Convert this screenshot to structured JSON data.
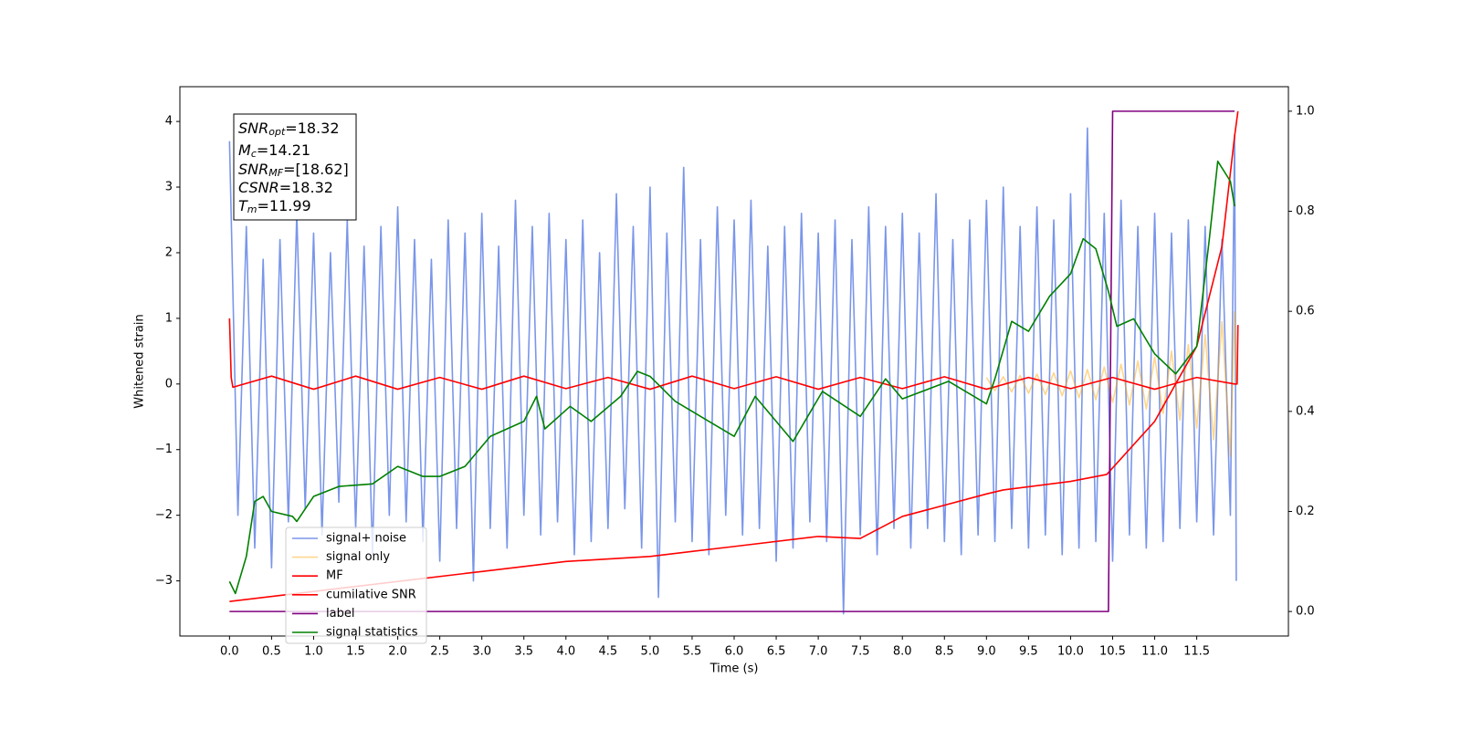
{
  "chart_data": {
    "type": "line",
    "xlabel": "Time (s)",
    "ylabel": "Whitened strain",
    "xlim": [
      -0.59,
      12.59
    ],
    "ylim": [
      -3.84,
      4.53
    ],
    "y2lim": [
      -0.049,
      1.049
    ],
    "xticks": [
      {
        "value": 0,
        "label": "0.0"
      },
      0.5,
      {
        "value": 1,
        "label": "1.0"
      },
      1.5,
      {
        "value": 2,
        "label": "2.0"
      },
      2.5,
      {
        "value": 3,
        "label": "3.0"
      },
      3.5,
      {
        "value": 4,
        "label": "4.0"
      },
      4.5,
      {
        "value": 5,
        "label": "5.0"
      },
      5.5,
      {
        "value": 6,
        "label": "6.0"
      },
      6.5,
      {
        "value": 7,
        "label": "7.0"
      },
      7.5,
      {
        "value": 8,
        "label": "8.0"
      },
      8.5,
      {
        "value": 9,
        "label": "9.0"
      },
      9.5,
      {
        "value": 10,
        "label": "10.0"
      },
      10.5,
      {
        "value": 11,
        "label": "11.0"
      },
      11.5
    ],
    "yticks": [
      {
        "value": -3,
        "label": "−3"
      },
      {
        "value": -2,
        "label": "−2"
      },
      {
        "value": -1,
        "label": "−1"
      },
      0,
      1,
      2,
      3,
      4
    ],
    "y2ticks": [
      {
        "value": 0,
        "label": "0.0"
      },
      0.2,
      0.4,
      0.6,
      0.8,
      {
        "value": 1,
        "label": "1.0"
      }
    ],
    "legend": "lower left",
    "annotations": [
      {
        "main": "SNR",
        "sub": "opt",
        "text": "=18.32"
      },
      {
        "main": "M",
        "sub": "c",
        "text": "=14.21"
      },
      {
        "main": "SNR",
        "sub": "MF",
        "text": "=[18.62]"
      },
      {
        "main": "CSNR",
        "text": "=18.32"
      },
      {
        "main": "T",
        "sub": "m",
        "text": "=11.99"
      }
    ],
    "series": [
      {
        "name": "signal+ noise",
        "color": "#4169e1",
        "opacity": 0.7,
        "x": [
          0,
          0.1,
          0.2,
          0.3,
          0.4,
          0.5,
          0.6,
          0.7,
          0.8,
          0.9,
          1,
          1.1,
          1.2,
          1.3,
          1.4,
          1.5,
          1.6,
          1.7,
          1.8,
          1.9,
          2,
          2.1,
          2.2,
          2.3,
          2.4,
          2.5,
          2.6,
          2.7,
          2.8,
          2.9,
          3,
          3.1,
          3.2,
          3.3,
          3.4,
          3.5,
          3.6,
          3.7,
          3.8,
          3.9,
          4,
          4.1,
          4.2,
          4.3,
          4.4,
          4.5,
          4.6,
          4.7,
          4.8,
          4.9,
          5,
          5.1,
          5.2,
          5.3,
          5.4,
          5.5,
          5.6,
          5.7,
          5.8,
          5.9,
          6,
          6.1,
          6.2,
          6.3,
          6.4,
          6.5,
          6.6,
          6.7,
          6.8,
          6.9,
          7,
          7.1,
          7.2,
          7.3,
          7.4,
          7.5,
          7.6,
          7.7,
          7.8,
          7.9,
          8,
          8.1,
          8.2,
          8.3,
          8.4,
          8.5,
          8.6,
          8.7,
          8.8,
          8.9,
          9,
          9.1,
          9.2,
          9.3,
          9.4,
          9.5,
          9.6,
          9.7,
          9.8,
          9.9,
          10,
          10.1,
          10.2,
          10.3,
          10.4,
          10.5,
          10.6,
          10.7,
          10.8,
          10.9,
          11,
          11.1,
          11.2,
          11.3,
          11.4,
          11.5,
          11.6,
          11.7,
          11.8,
          11.9,
          11.95,
          11.97
        ],
        "values": [
          3.7,
          -2.0,
          2.4,
          -2.5,
          1.9,
          -2.8,
          2.2,
          -2.1,
          2.6,
          -1.9,
          2.3,
          -2.3,
          2.0,
          -1.8,
          2.5,
          -2.2,
          2.1,
          -2.6,
          2.4,
          -2.0,
          2.7,
          -2.1,
          2.2,
          -2.4,
          1.9,
          -2.7,
          2.5,
          -2.2,
          2.3,
          -3.0,
          2.6,
          -2.2,
          2.1,
          -2.5,
          2.8,
          -2.0,
          2.4,
          -2.3,
          2.6,
          -2.1,
          2.2,
          -2.6,
          2.5,
          -2.4,
          2.0,
          -2.2,
          2.9,
          -1.9,
          2.4,
          -2.5,
          3.0,
          -3.25,
          2.3,
          -2.1,
          3.3,
          -2.4,
          2.2,
          -2.6,
          2.7,
          -2.0,
          2.5,
          -2.3,
          2.8,
          -2.2,
          2.1,
          -2.7,
          2.4,
          -2.5,
          2.6,
          -2.1,
          2.3,
          -2.4,
          2.5,
          -3.5,
          2.2,
          -2.3,
          2.7,
          -2.6,
          2.4,
          -2.2,
          2.6,
          -2.5,
          2.3,
          -2.2,
          2.9,
          -2.4,
          2.2,
          -2.6,
          2.5,
          -2.3,
          2.8,
          -2.4,
          3.0,
          -2.2,
          2.4,
          -2.5,
          2.7,
          -2.3,
          2.5,
          -2.6,
          2.9,
          -2.5,
          3.9,
          -2.4,
          2.6,
          -2.7,
          2.8,
          -2.3,
          2.4,
          -2.5,
          2.6,
          -2.4,
          2.3,
          -2.2,
          2.5,
          -2.1,
          2.4,
          -2.3,
          2.2,
          -2.0,
          3.8,
          -3.0
        ]
      },
      {
        "name": "signal only",
        "color": "#ffa500",
        "opacity": 0.45,
        "x": [
          9,
          9.1,
          9.2,
          9.3,
          9.4,
          9.5,
          9.6,
          9.7,
          9.8,
          9.9,
          10,
          10.1,
          10.2,
          10.3,
          10.4,
          10.5,
          10.6,
          10.7,
          10.8,
          10.9,
          11,
          11.1,
          11.2,
          11.3,
          11.4,
          11.5,
          11.6,
          11.7,
          11.8,
          11.9,
          11.95,
          11.97
        ],
        "values": [
          0.1,
          -0.1,
          0.11,
          -0.12,
          0.13,
          -0.14,
          0.15,
          -0.16,
          0.17,
          -0.18,
          0.2,
          -0.21,
          0.22,
          -0.24,
          0.26,
          -0.28,
          0.3,
          -0.32,
          0.35,
          -0.38,
          0.41,
          -0.45,
          0.5,
          -0.55,
          0.6,
          -0.67,
          0.75,
          -0.85,
          0.95,
          -1.1,
          1.1,
          0
        ]
      },
      {
        "name": "MF",
        "color": "#ff0000",
        "opacity": 1,
        "x": [
          0,
          0.02,
          0.04,
          0.5,
          1,
          1.5,
          2,
          2.5,
          3,
          3.5,
          4,
          4.5,
          5,
          5.5,
          6,
          6.5,
          7,
          7.5,
          8,
          8.5,
          9,
          9.5,
          10,
          10.5,
          11,
          11.5,
          11.95,
          11.98,
          11.99
        ],
        "values": [
          1.0,
          0.1,
          -0.05,
          0.12,
          -0.08,
          0.12,
          -0.08,
          0.1,
          -0.08,
          0.12,
          -0.07,
          0.1,
          -0.08,
          0.12,
          -0.07,
          0.11,
          -0.08,
          0.1,
          -0.07,
          0.11,
          -0.08,
          0.1,
          -0.07,
          0.1,
          -0.08,
          0.1,
          0.0,
          0.0,
          0.9
        ]
      },
      {
        "name": "cumilative SNR",
        "color": "#ff0000",
        "opacity": 1,
        "axis": "y2",
        "x": [
          0,
          1,
          2,
          3,
          4,
          5,
          6,
          7,
          7.5,
          8,
          9,
          9.2,
          10,
          10.43,
          11,
          11.5,
          11.8,
          11.95,
          11.99
        ],
        "values": [
          0.02,
          0.04,
          0.06,
          0.08,
          0.1,
          0.11,
          0.13,
          0.15,
          0.146,
          0.19,
          0.235,
          0.243,
          0.26,
          0.274,
          0.38,
          0.53,
          0.73,
          0.95,
          1.0
        ]
      },
      {
        "name": "label",
        "color": "#800080",
        "opacity": 1,
        "axis": "y2",
        "x": [
          0,
          10.45,
          10.5,
          11.95
        ],
        "values": [
          0,
          0,
          1,
          1
        ]
      },
      {
        "name": "signal statistics",
        "color": "#008000",
        "opacity": 1,
        "axis": "y2",
        "x": [
          0,
          0.07,
          0.2,
          0.3,
          0.4,
          0.5,
          0.75,
          0.8,
          1,
          1.3,
          1.7,
          2,
          2.3,
          2.5,
          2.8,
          3.1,
          3.5,
          3.65,
          3.75,
          4.05,
          4.3,
          4.65,
          4.85,
          5,
          5.3,
          5.6,
          6,
          6.25,
          6.7,
          7.05,
          7.5,
          7.8,
          8,
          8.55,
          9,
          9.1,
          9.3,
          9.5,
          9.75,
          10,
          10.15,
          10.3,
          10.45,
          10.55,
          10.75,
          11,
          11.25,
          11.5,
          11.65,
          11.75,
          11.9,
          11.95
        ],
        "values": [
          0.06,
          0.036,
          0.11,
          0.22,
          0.23,
          0.2,
          0.19,
          0.18,
          0.23,
          0.25,
          0.255,
          0.29,
          0.27,
          0.27,
          0.29,
          0.35,
          0.38,
          0.43,
          0.365,
          0.41,
          0.38,
          0.43,
          0.48,
          0.47,
          0.42,
          0.39,
          0.35,
          0.43,
          0.34,
          0.44,
          0.39,
          0.465,
          0.425,
          0.46,
          0.415,
          0.465,
          0.58,
          0.56,
          0.63,
          0.675,
          0.745,
          0.725,
          0.64,
          0.57,
          0.585,
          0.515,
          0.475,
          0.53,
          0.745,
          0.9,
          0.86,
          0.81
        ]
      }
    ]
  }
}
